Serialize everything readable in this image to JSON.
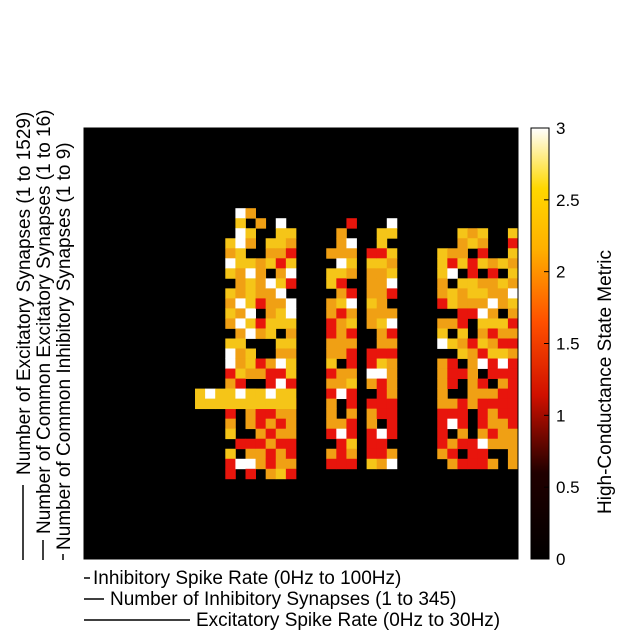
{
  "chart_data": {
    "type": "heatmap",
    "title": "",
    "xlabels": [
      "Inhibitory Spike Rate (0Hz to 100Hz)",
      "Number of Inhibitory Synapses (1 to 345)",
      "Excitatory Spike Rate (0Hz to 30Hz)"
    ],
    "ylabels": [
      "Number of Excitatory Synapses (1 to 1529)",
      "Number of Common Excitatory Synapses (1 to 16)",
      "Number of Common Inhibitory Synapses (1 to 9)"
    ],
    "colorbar": {
      "label": "High-Conductance State Metric",
      "ticks": [
        "0",
        "0.5",
        "1",
        "1.5",
        "2",
        "2.5",
        "3"
      ],
      "range": [
        0,
        3
      ],
      "colormap": "hot"
    },
    "grid_size": [
      43,
      43
    ],
    "values_note_levels": [
      0,
      1.2,
      1.9,
      2.6,
      3.0
    ],
    "blocks": [
      {
        "cols": [
          13,
          21
        ],
        "rows": [
          8,
          35
        ],
        "base": 2.3,
        "seed": 3
      },
      {
        "cols": [
          24,
          31
        ],
        "rows": [
          9,
          34
        ],
        "base": 2.1,
        "seed": 7
      },
      {
        "cols": [
          35,
          43
        ],
        "rows": [
          10,
          34
        ],
        "base": 2.0,
        "seed": 11
      }
    ],
    "bright_band": {
      "row": 26,
      "cols": [
        11,
        21
      ],
      "value": 2.6
    },
    "background_value": 0
  },
  "colors": {
    "black": "#000000",
    "red": "#e8150c",
    "orange": "#f0a014",
    "gold": "#f5c518",
    "white": "#ffffff"
  }
}
